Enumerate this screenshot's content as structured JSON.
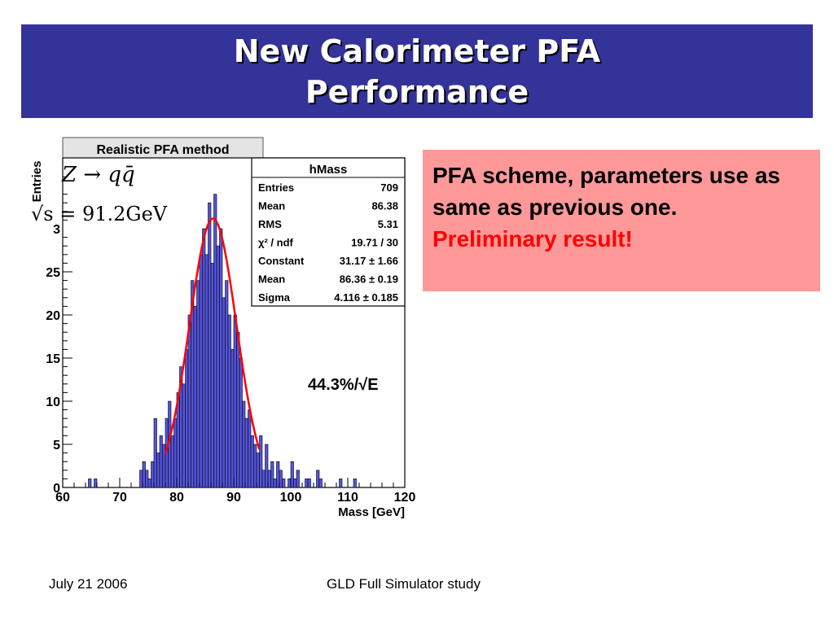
{
  "slide": {
    "title_line1": "New Calorimeter PFA",
    "title_line2": "Performance",
    "info_text": "PFA scheme, parameters use as same as previous one.",
    "info_prelim": "Preliminary result!",
    "footer_date": "July 21 2006",
    "footer_study": "GLD Full Simulator study",
    "colors": {
      "title_bg": "#333399",
      "info_bg": "#ff9999",
      "prelim": "#ff0000",
      "hist_fill": "#5555dd",
      "fit_line": "#ff0000"
    }
  },
  "chart_data": {
    "type": "bar",
    "title": "Realistic PFA method",
    "xlabel": "Mass [GeV]",
    "ylabel": "Entries",
    "xlim": [
      60,
      120
    ],
    "ylim": [
      0,
      38
    ],
    "x_ticks": [
      60,
      70,
      80,
      90,
      100,
      110,
      120
    ],
    "y_ticks": [
      0,
      5,
      10,
      15,
      20,
      25
    ],
    "y_tick_partial": "3",
    "bin_width": 0.5,
    "bins_start": [
      64.5,
      65,
      65.5,
      73.5,
      74,
      74.5,
      75,
      75.5,
      76,
      76.5,
      77,
      77.5,
      78,
      78.5,
      79,
      79.5,
      80,
      80.5,
      81,
      81.5,
      82,
      82.5,
      83,
      83.5,
      84,
      84.5,
      85,
      85.5,
      86,
      86.5,
      87,
      87.5,
      88,
      88.5,
      89,
      89.5,
      90,
      90.5,
      91,
      91.5,
      92,
      92.5,
      93,
      93.5,
      94,
      94.5,
      95,
      95.5,
      96,
      96.5,
      97,
      97.5,
      98,
      98.5,
      99,
      99.5,
      100,
      100.5,
      101,
      101.5,
      102,
      102.5,
      103,
      103.5,
      104,
      104.5,
      105,
      105.5,
      108.5,
      109,
      110.5,
      111
    ],
    "values": [
      1,
      0,
      1,
      2,
      3,
      2,
      1,
      3,
      8,
      4,
      6,
      5,
      8,
      10,
      6,
      8,
      11,
      14,
      12,
      16,
      20,
      24,
      21,
      24,
      27,
      30,
      27,
      33,
      26,
      34,
      28,
      30,
      22,
      24,
      20,
      16,
      20,
      18,
      15,
      10,
      8,
      9,
      6,
      5,
      4,
      6,
      2,
      5,
      2,
      3,
      1,
      3,
      2,
      1,
      0,
      1,
      3,
      1,
      2,
      0,
      0,
      1,
      1,
      0,
      0,
      2,
      1,
      0,
      1,
      0,
      0,
      1
    ],
    "fit_curve": {
      "type": "gaussian",
      "constant": 31.17,
      "mean": 86.36,
      "sigma": 4.116,
      "x_range": [
        78,
        94.5
      ]
    },
    "stats_box": {
      "name": "hMass",
      "rows": [
        {
          "label": "Entries",
          "value": "709"
        },
        {
          "label": "Mean",
          "value": "86.38"
        },
        {
          "label": "RMS",
          "value": "5.31"
        },
        {
          "label": "χ² / ndf",
          "value": "19.71 / 30"
        },
        {
          "label": "Constant",
          "value": "31.17 ± 1.66"
        },
        {
          "label": "Mean",
          "value": "86.36 ± 0.19"
        },
        {
          "label": "Sigma",
          "value": "4.116 ± 0.185"
        }
      ]
    },
    "annotations": {
      "process": "Z → qq̄",
      "energy": "√s = 91.2GeV",
      "resolution": "44.3%/√E"
    }
  }
}
